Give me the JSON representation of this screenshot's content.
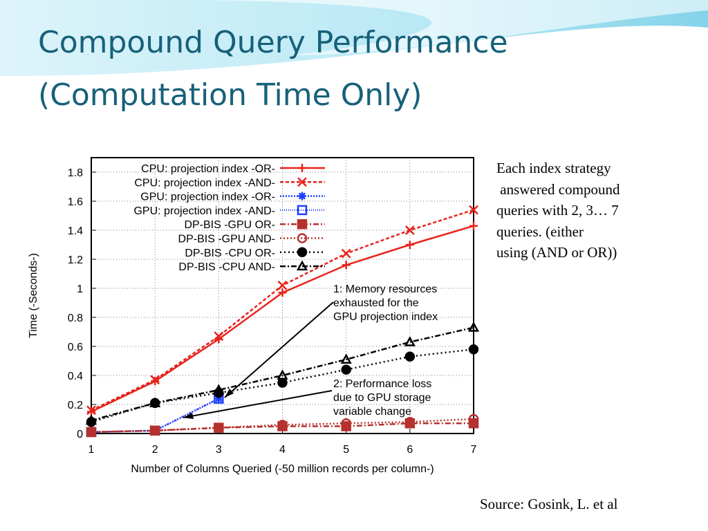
{
  "slide": {
    "title": [
      "Compound Query Performance",
      "(Computation Time Only)"
    ],
    "note": [
      "Each index strategy",
      " answered compound",
      "queries with 2, 3… 7",
      "queries. (either",
      "using (AND or OR))"
    ],
    "source": "Source: Gosink, L. et al"
  },
  "chart_data": {
    "type": "line",
    "x_label": "Number of Columns Queried (-50 million records per column-)",
    "y_label": "Time (-Seconds-)",
    "x": [
      1,
      2,
      3,
      4,
      5,
      6,
      7
    ],
    "xlim": [
      1,
      7
    ],
    "xticks": [
      1,
      2,
      3,
      4,
      5,
      6,
      7
    ],
    "ylim": [
      0,
      1.9
    ],
    "yticks": [
      0,
      0.2,
      0.4,
      0.6,
      0.8,
      1,
      1.2,
      1.4,
      1.6,
      1.8
    ],
    "grid": true,
    "legend": "upper left",
    "series": [
      {
        "name": "CPU: projection index -OR-",
        "color": "#e8221b",
        "marker": "plus",
        "dash": "none",
        "values": [
          0.15,
          0.36,
          0.65,
          0.97,
          1.16,
          1.3,
          1.43
        ]
      },
      {
        "name": "CPU: projection index -AND-",
        "color": "#e8221b",
        "marker": "x",
        "dash": "5,3",
        "values": [
          0.16,
          0.37,
          0.67,
          1.02,
          1.24,
          1.4,
          1.54
        ]
      },
      {
        "name": "GPU: projection index -OR-",
        "color": "#1f3fff",
        "marker": "star",
        "dash": "2,2",
        "values": [
          0.01,
          0.02,
          0.24,
          null,
          null,
          null,
          null
        ]
      },
      {
        "name": "GPU: projection index -AND-",
        "color": "#1f3fff",
        "marker": "square-open",
        "dash": "1,2",
        "values": [
          0.01,
          0.02,
          0.24,
          null,
          null,
          null,
          null
        ]
      },
      {
        "name": "DP-BIS  -GPU OR-",
        "color": "#b5312e",
        "marker": "square",
        "dash": "8,3,2,3",
        "values": [
          0.01,
          0.02,
          0.04,
          0.05,
          0.05,
          0.07,
          0.07
        ]
      },
      {
        "name": "DP-BIS -GPU AND-",
        "color": "#b5312e",
        "marker": "circle-open",
        "dash": "2,3",
        "values": [
          0.01,
          0.02,
          0.04,
          0.06,
          0.07,
          0.08,
          0.1
        ]
      },
      {
        "name": "DP-BIS  -CPU OR-",
        "color": "#000000",
        "marker": "circle",
        "dash": "2,4",
        "values": [
          0.08,
          0.21,
          0.28,
          0.35,
          0.44,
          0.53,
          0.58
        ]
      },
      {
        "name": "DP-BIS -CPU AND-",
        "color": "#000000",
        "marker": "triangle-open",
        "dash": "8,3,2,3",
        "values": [
          0.09,
          0.21,
          0.3,
          0.4,
          0.51,
          0.63,
          0.73
        ]
      }
    ],
    "annotations": [
      [
        "1: Memory resources",
        "exhausted for the",
        "GPU projection index"
      ],
      [
        "2: Performance loss",
        "due to GPU storage",
        "variable change"
      ]
    ]
  }
}
